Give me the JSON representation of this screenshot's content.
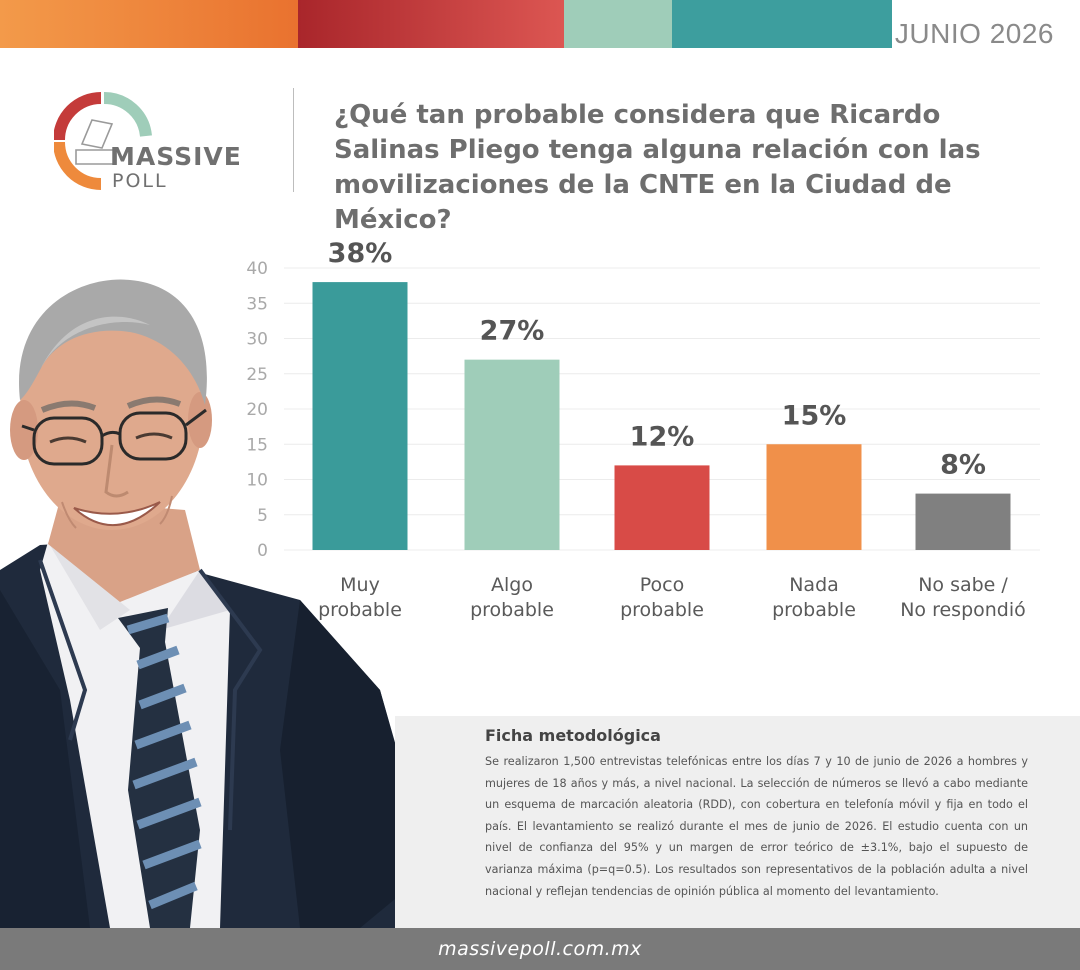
{
  "header": {
    "date": "JUNIO 2026",
    "bar_colors": [
      "#f08b3e",
      "#d5473f",
      "#9fcdb9",
      "#3d9e9e"
    ]
  },
  "logo": {
    "line1": "MASSIVE",
    "line2": "POLL"
  },
  "question": "¿Qué tan probable considera que Ricardo Salinas Pliego tenga alguna relación con las movilizaciones de la CNTE en la Ciudad de México?",
  "chart_data": {
    "type": "bar",
    "categories": [
      [
        "Muy",
        "probable"
      ],
      [
        "Algo",
        "probable"
      ],
      [
        "Poco",
        "probable"
      ],
      [
        "Nada",
        "probable"
      ],
      [
        "No sabe /",
        "No respondió"
      ]
    ],
    "values": [
      38,
      27,
      12,
      15,
      8
    ],
    "data_labels": [
      "38%",
      "27%",
      "12%",
      "15%",
      "8%"
    ],
    "colors": [
      "#3a9b9a",
      "#9fcdb9",
      "#d84b47",
      "#f0904a",
      "#808080"
    ],
    "ylim": [
      0,
      40
    ],
    "yticks": [
      0,
      5,
      10,
      15,
      20,
      25,
      30,
      35,
      40
    ],
    "grid": true
  },
  "methodology": {
    "title": "Ficha metodológica",
    "body": "Se realizaron 1,500 entrevistas telefónicas entre los días 7 y 10 de junio de 2026 a hombres y mujeres de 18 años y más, a nivel nacional. La selección de números se llevó a cabo mediante un esquema de marcación aleatoria (RDD), con cobertura en telefonía móvil y fija en todo el país. El levantamiento se realizó durante el mes de junio de 2026. El estudio cuenta con un nivel de confianza del 95% y un margen de error teórico de ±3.1%, bajo el supuesto de varianza máxima (p=q=0.5). Los resultados son representativos de la población adulta a nivel nacional y reflejan tendencias de opinión pública al momento del levantamiento."
  },
  "footer": {
    "url": "massivepoll.com.mx"
  }
}
